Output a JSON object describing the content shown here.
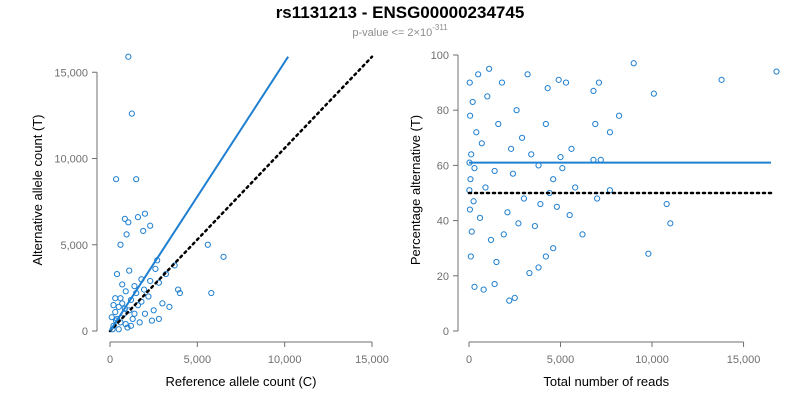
{
  "header": {
    "title": "rs1131213 - ENSG00000234745",
    "subtitle_prefix": "p-value <= 2×10",
    "subtitle_exp": "-311"
  },
  "colors": {
    "series": "#1f7fd0",
    "reference_line": "#000000",
    "axis": "#6f6f6f"
  },
  "chart_data": [
    {
      "type": "scatter",
      "title": "",
      "xlabel": "Reference allele count (C)",
      "ylabel": "Alternative allele count (T)",
      "xlim": [
        0,
        15000
      ],
      "ylim": [
        0,
        16000
      ],
      "xticks": [
        0,
        5000,
        10000,
        15000
      ],
      "yticks": [
        0,
        5000,
        10000,
        15000
      ],
      "xtick_labels": [
        "0",
        "5,000",
        "10,000",
        "15,000"
      ],
      "ytick_labels": [
        "0",
        "5,000",
        "10,000",
        "15,000"
      ],
      "points": [
        [
          1050,
          15900
        ],
        [
          1250,
          12600
        ],
        [
          1500,
          8800
        ],
        [
          350,
          8800
        ],
        [
          850,
          6500
        ],
        [
          1050,
          6300
        ],
        [
          1600,
          6600
        ],
        [
          2000,
          6800
        ],
        [
          2300,
          6100
        ],
        [
          600,
          5000
        ],
        [
          1900,
          5800
        ],
        [
          950,
          5600
        ],
        [
          5600,
          5000
        ],
        [
          6500,
          4300
        ],
        [
          5800,
          2200
        ],
        [
          3700,
          3800
        ],
        [
          2700,
          4100
        ],
        [
          3200,
          3300
        ],
        [
          2800,
          2800
        ],
        [
          3900,
          2400
        ],
        [
          4000,
          2200
        ],
        [
          3000,
          1600
        ],
        [
          2500,
          1200
        ],
        [
          3400,
          1400
        ],
        [
          1800,
          3000
        ],
        [
          1400,
          2600
        ],
        [
          900,
          2300
        ],
        [
          2200,
          2000
        ],
        [
          1200,
          1800
        ],
        [
          700,
          1600
        ],
        [
          500,
          1400
        ],
        [
          300,
          1100
        ],
        [
          1600,
          1500
        ],
        [
          2000,
          1000
        ],
        [
          800,
          1000
        ],
        [
          1100,
          1200
        ],
        [
          400,
          700
        ],
        [
          600,
          500
        ],
        [
          200,
          300
        ],
        [
          1300,
          700
        ],
        [
          900,
          400
        ],
        [
          1700,
          500
        ],
        [
          150,
          100
        ],
        [
          500,
          100
        ],
        [
          1000,
          200
        ],
        [
          2400,
          600
        ],
        [
          300,
          1900
        ],
        [
          1500,
          2200
        ],
        [
          700,
          2700
        ],
        [
          400,
          3300
        ],
        [
          1100,
          3500
        ],
        [
          2600,
          3600
        ],
        [
          200,
          1500
        ],
        [
          1800,
          1700
        ],
        [
          1200,
          300
        ],
        [
          2800,
          700
        ],
        [
          600,
          1900
        ],
        [
          350,
          600
        ],
        [
          1400,
          1000
        ],
        [
          850,
          1300
        ],
        [
          1950,
          2400
        ],
        [
          2300,
          2900
        ],
        [
          100,
          800
        ]
      ],
      "fit_line": {
        "x": [
          0,
          10200
        ],
        "y": [
          0,
          15900
        ]
      },
      "reference_line": {
        "x": [
          0,
          15000
        ],
        "y": [
          0,
          15900
        ]
      }
    },
    {
      "type": "scatter",
      "title": "",
      "xlabel": "Total number of reads",
      "ylabel": "Percentage alternative (T)",
      "xlim": [
        0,
        16500
      ],
      "ylim": [
        0,
        100
      ],
      "xticks": [
        0,
        5000,
        10000,
        15000
      ],
      "yticks": [
        0,
        20,
        40,
        60,
        80,
        100
      ],
      "xtick_labels": [
        "0",
        "5,000",
        "10,000",
        "15,000"
      ],
      "ytick_labels": [
        "0",
        "20",
        "40",
        "60",
        "80",
        "100"
      ],
      "points": [
        [
          16800,
          94
        ],
        [
          13800,
          91
        ],
        [
          9000,
          97
        ],
        [
          10100,
          86
        ],
        [
          7100,
          90
        ],
        [
          6800,
          87
        ],
        [
          8200,
          78
        ],
        [
          7700,
          72
        ],
        [
          6900,
          75
        ],
        [
          6800,
          62
        ],
        [
          7200,
          62
        ],
        [
          7700,
          51
        ],
        [
          7000,
          48
        ],
        [
          10800,
          46
        ],
        [
          11000,
          39
        ],
        [
          9800,
          28
        ],
        [
          6200,
          35
        ],
        [
          4600,
          30
        ],
        [
          4200,
          27
        ],
        [
          3800,
          23
        ],
        [
          3300,
          21
        ],
        [
          2500,
          12
        ],
        [
          2200,
          11
        ],
        [
          1400,
          17
        ],
        [
          800,
          15
        ],
        [
          300,
          16
        ],
        [
          4900,
          91
        ],
        [
          5300,
          90
        ],
        [
          4300,
          88
        ],
        [
          3200,
          93
        ],
        [
          4200,
          75
        ],
        [
          3800,
          60
        ],
        [
          5600,
          66
        ],
        [
          5000,
          63
        ],
        [
          4600,
          55
        ],
        [
          5800,
          52
        ],
        [
          4800,
          45
        ],
        [
          3600,
          38
        ],
        [
          3000,
          48
        ],
        [
          2900,
          70
        ],
        [
          2600,
          80
        ],
        [
          2300,
          66
        ],
        [
          2100,
          43
        ],
        [
          1800,
          90
        ],
        [
          1600,
          75
        ],
        [
          1400,
          58
        ],
        [
          1200,
          33
        ],
        [
          1000,
          85
        ],
        [
          900,
          52
        ],
        [
          700,
          68
        ],
        [
          600,
          41
        ],
        [
          500,
          93
        ],
        [
          400,
          72
        ],
        [
          300,
          59
        ],
        [
          250,
          47
        ],
        [
          200,
          83
        ],
        [
          150,
          36
        ],
        [
          120,
          64
        ],
        [
          100,
          27
        ],
        [
          80,
          55
        ],
        [
          60,
          78
        ],
        [
          50,
          44
        ],
        [
          40,
          90
        ],
        [
          30,
          61
        ],
        [
          20,
          51
        ],
        [
          1100,
          95
        ],
        [
          1500,
          25
        ],
        [
          1900,
          35
        ],
        [
          2400,
          57
        ],
        [
          2700,
          39
        ],
        [
          3400,
          64
        ],
        [
          3900,
          46
        ],
        [
          4400,
          50
        ],
        [
          5100,
          59
        ],
        [
          5500,
          42
        ]
      ],
      "fit_line": {
        "x": [
          0,
          16500
        ],
        "y": [
          61,
          61
        ]
      },
      "reference_line": {
        "x": [
          0,
          16500
        ],
        "y": [
          50,
          50
        ]
      }
    }
  ]
}
